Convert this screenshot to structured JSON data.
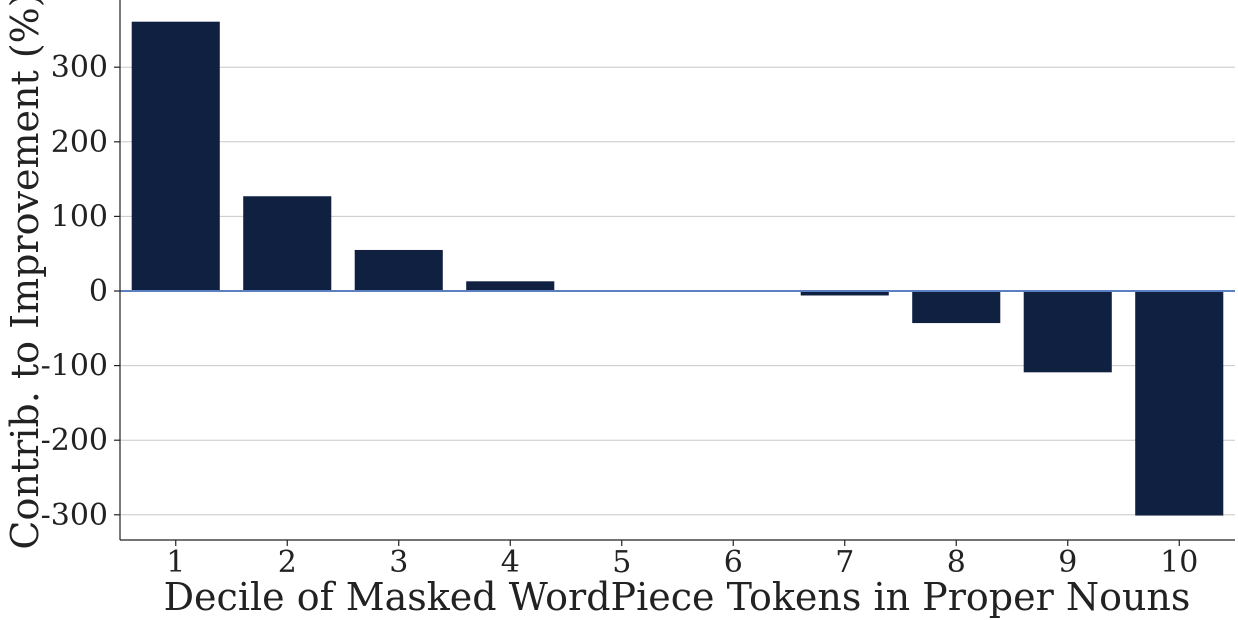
{
  "chart_data": {
    "type": "bar",
    "title": "",
    "xlabel": "Decile of Masked WordPiece Tokens in Proper Nouns",
    "ylabel": "Contrib. to Improvement (%)",
    "categories": [
      "1",
      "2",
      "3",
      "4",
      "5",
      "6",
      "7",
      "8",
      "9",
      "10"
    ],
    "values": [
      361,
      127,
      55,
      13,
      0.5,
      -0.5,
      -6,
      -43,
      -109,
      -301
    ],
    "ylim": [
      -333,
      390
    ],
    "yticks": [
      300,
      200,
      100,
      0,
      -100,
      -200,
      -300
    ],
    "ytick_labels": [
      "300",
      "200",
      "100",
      "0",
      "-100",
      "-200",
      "-300"
    ],
    "grid": "horizontal",
    "legend": "none",
    "colors": {
      "bar": "#0f2040",
      "zero_line": "#5b7fc0",
      "grid": "#c8c8c8",
      "axis": "#222222"
    }
  }
}
